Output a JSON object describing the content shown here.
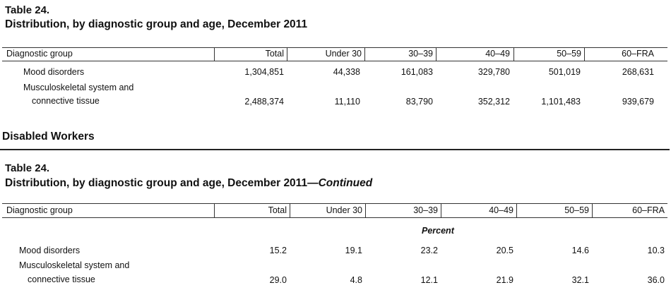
{
  "table1": {
    "number": "Table 24.",
    "title": "Distribution, by diagnostic group and age, December 2011",
    "columns": [
      "Diagnostic group",
      "Total",
      "Under 30",
      "30–39",
      "40–49",
      "50–59",
      "60–FRA"
    ],
    "rows": [
      {
        "label": [
          "Mood disorders"
        ],
        "values": [
          "1,304,851",
          "44,338",
          "161,083",
          "329,780",
          "501,019",
          "268,631"
        ]
      },
      {
        "label": [
          "Musculoskeletal system and",
          "connective tissue"
        ],
        "values": [
          "2,488,374",
          "11,110",
          "83,790",
          "352,312",
          "1,101,483",
          "939,679"
        ]
      }
    ]
  },
  "section_title": "Disabled Workers",
  "table2": {
    "number": "Table 24.",
    "title": "Distribution, by diagnostic group and age, December 2011—",
    "title_suffix": "Continued",
    "columns": [
      "Diagnostic group",
      "Total",
      "Under 30",
      "30–39",
      "40–49",
      "50–59",
      "60–FRA"
    ],
    "subheader": "Percent",
    "rows": [
      {
        "label": [
          "Mood disorders"
        ],
        "values": [
          "15.2",
          "19.1",
          "23.2",
          "20.5",
          "14.6",
          "10.3"
        ]
      },
      {
        "label": [
          "Musculoskeletal system and",
          "connective tissue"
        ],
        "values": [
          "29.0",
          "4.8",
          "12.1",
          "21.9",
          "32.1",
          "36.0"
        ]
      }
    ]
  }
}
